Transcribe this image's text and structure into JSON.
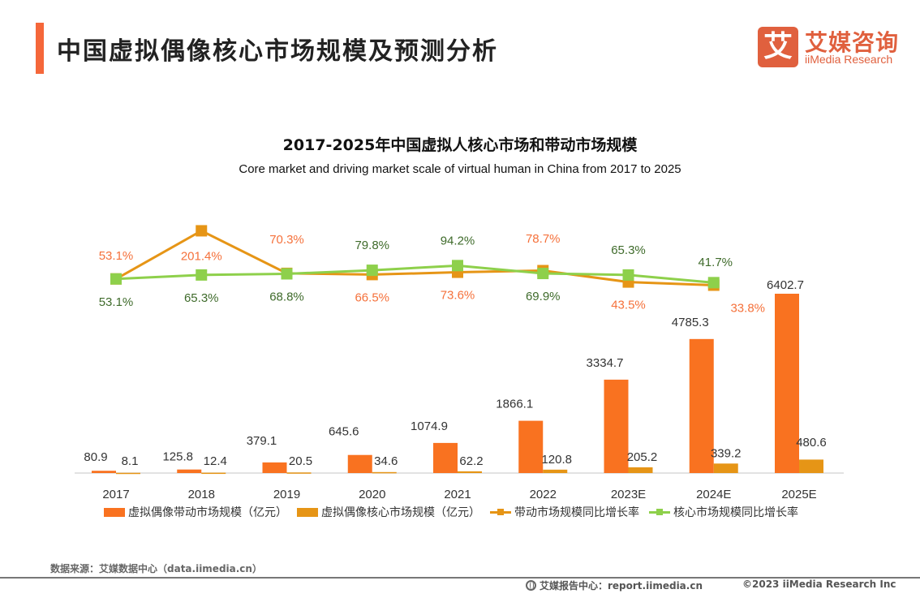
{
  "header": {
    "title": "中国虚拟偶像核心市场规模及预测分析",
    "logo_mark": "艾",
    "logo_cn": "艾媒咨询",
    "logo_en": "iiMedia Research"
  },
  "colors": {
    "accent": "#f5673a",
    "driving_bar": "#f97220",
    "core_bar": "#e69516",
    "driving_line": "#e69516",
    "core_line": "#8ed04b",
    "driving_label": "#f5713b",
    "core_label": "#3f6b2b",
    "value_label": "#333333"
  },
  "chart_data": {
    "type": "bar+line",
    "title": "2017-2025年中国虚拟人核心市场和带动市场规模",
    "subtitle": "Core market and driving market scale of virtual human in China from 2017 to 2025",
    "categories": [
      "2017",
      "2018",
      "2019",
      "2020",
      "2021",
      "2022",
      "2023E",
      "2024E",
      "2025E"
    ],
    "series": [
      {
        "name": "虚拟偶像带动市场规模（亿元）",
        "type": "bar",
        "color_key": "driving_bar",
        "values": [
          80.9,
          125.8,
          379.1,
          645.6,
          1074.9,
          1866.1,
          3334.7,
          4785.3,
          6402.7
        ]
      },
      {
        "name": "虚拟偶像核心市场规模（亿元）",
        "type": "bar",
        "color_key": "core_bar",
        "values": [
          8.1,
          12.4,
          20.5,
          34.6,
          62.2,
          120.8,
          205.2,
          339.2,
          480.6
        ]
      },
      {
        "name": "带动市场规模同比增长率",
        "type": "line",
        "color_key": "driving_line",
        "axis": "secondary",
        "values": [
          null,
          53.1,
          201.4,
          70.3,
          66.5,
          73.6,
          78.7,
          43.5,
          33.8
        ],
        "labels": [
          "",
          "53.1%",
          "201.4%",
          "70.3%",
          "66.5%",
          "73.6%",
          "78.7%",
          "43.5%",
          "33.8%"
        ]
      },
      {
        "name": "核心市场规模同比增长率",
        "type": "line",
        "color_key": "core_line",
        "axis": "secondary",
        "values": [
          null,
          53.1,
          65.3,
          68.8,
          79.8,
          94.2,
          69.9,
          65.3,
          41.7
        ],
        "labels": [
          "",
          "53.1%",
          "65.3%",
          "68.8%",
          "79.8%",
          "94.2%",
          "69.9%",
          "65.3%",
          "41.7%"
        ]
      }
    ],
    "bar_labels": {
      "driving": [
        "80.9",
        "125.8",
        "379.1",
        "645.6",
        "1074.9",
        "1866.1",
        "3334.7",
        "4785.3",
        "6402.7"
      ],
      "core": [
        "8.1",
        "12.4",
        "20.5",
        "34.6",
        "62.2",
        "120.8",
        "205.2",
        "339.2",
        "480.6"
      ]
    },
    "ylim": [
      0,
      6500
    ],
    "secondary_ylim": [
      0,
      250
    ],
    "grid": false,
    "legend": "bottom",
    "xlabel": "",
    "ylabel": ""
  },
  "legend": [
    {
      "label": "虚拟偶像带动市场规模（亿元）",
      "kind": "rect",
      "color": "#f97220"
    },
    {
      "label": "虚拟偶像核心市场规模（亿元）",
      "kind": "rect",
      "color": "#e69516"
    },
    {
      "label": "带动市场规模同比增长率",
      "kind": "line",
      "color": "#e69516"
    },
    {
      "label": "核心市场规模同比增长率",
      "kind": "line",
      "color": "#8ed04b"
    }
  ],
  "footer": {
    "source": "数据来源：艾媒数据中心（data.iimedia.cn）",
    "report": "艾媒报告中心：report.iimedia.cn",
    "copyright": "©2023  iiMedia Research  Inc"
  }
}
